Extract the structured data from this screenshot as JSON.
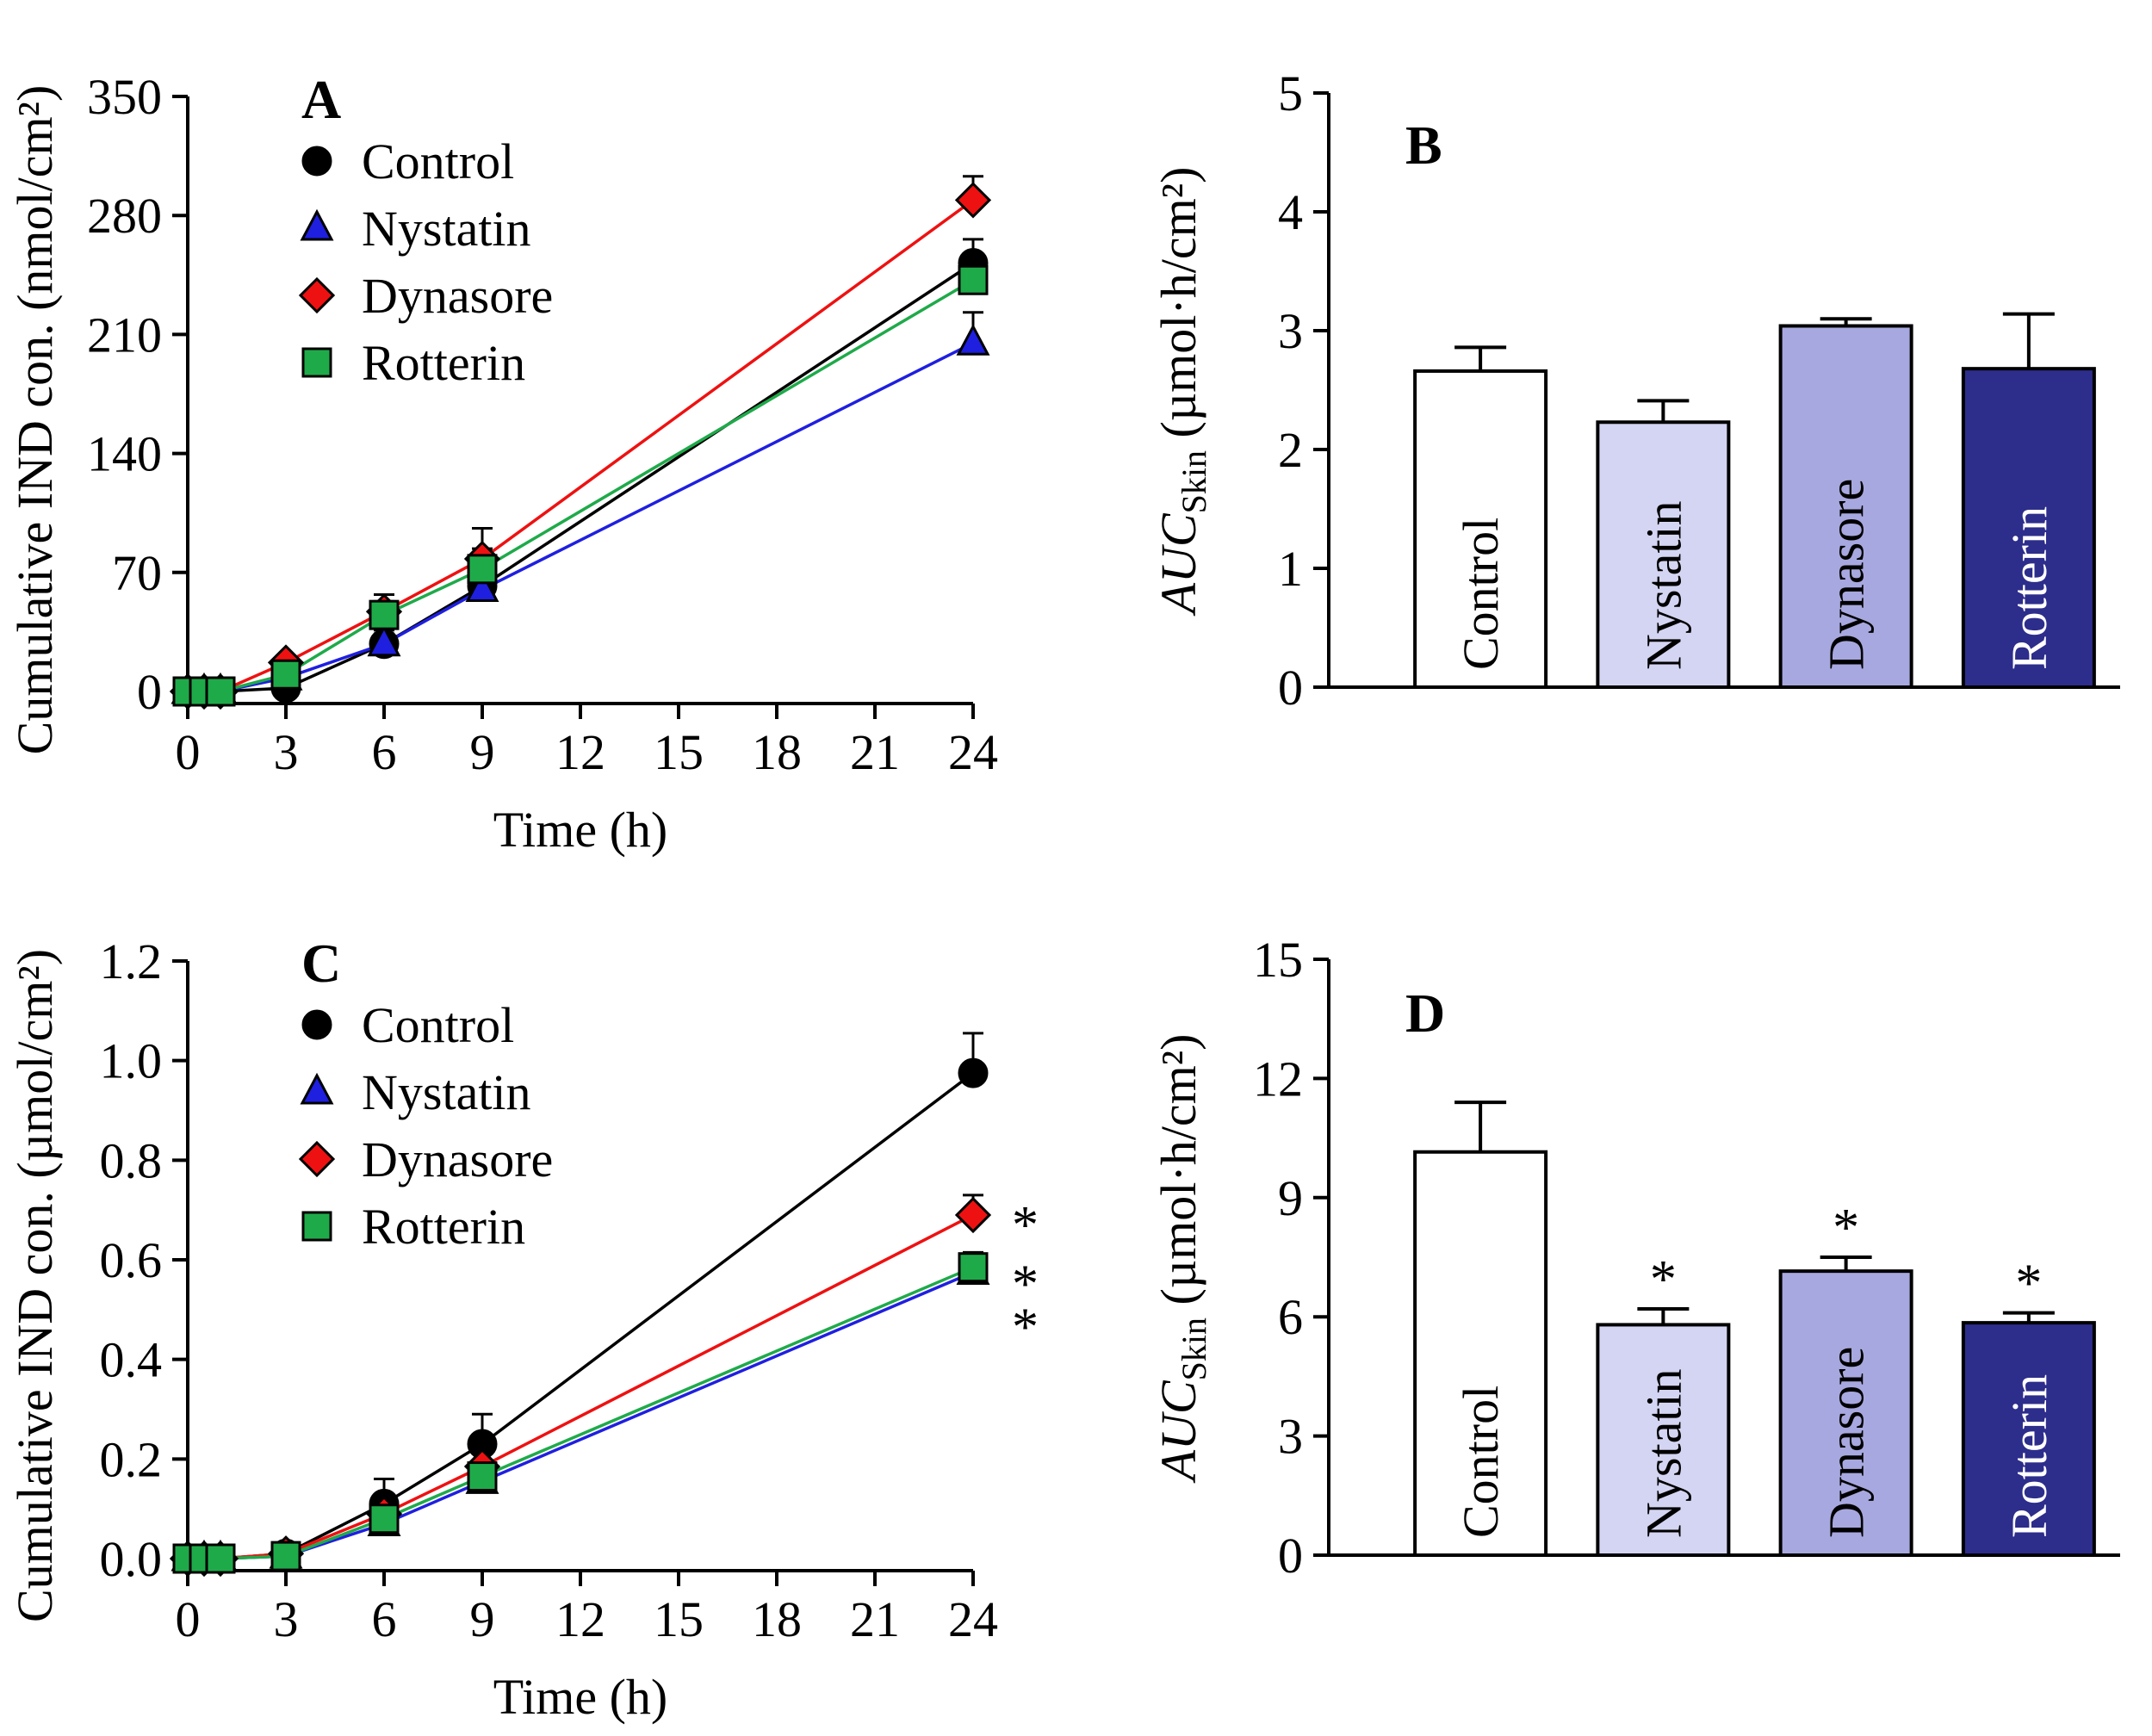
{
  "chart_data": [
    {
      "panel": "A",
      "type": "line",
      "title": "A",
      "xlabel": "Time (h)",
      "ylabel": "Cumulative IND con. (nmol/cm²)",
      "xlim": [
        0,
        24
      ],
      "ylim": [
        0,
        350
      ],
      "xticks": [
        "0",
        "3",
        "6",
        "9",
        "12",
        "15",
        "18",
        "21",
        "24"
      ],
      "yticks": [
        "0",
        "70",
        "140",
        "210",
        "280",
        "350"
      ],
      "x": [
        0,
        0.5,
        1,
        3,
        6,
        9,
        24
      ],
      "legend_position": "top-left",
      "series": [
        {
          "name": "Control",
          "marker": "circle",
          "color": "#000000",
          "values": [
            0,
            0,
            0,
            2,
            28,
            62,
            252
          ],
          "err": [
            0,
            0,
            0,
            4,
            8,
            10,
            14
          ]
        },
        {
          "name": "Nystatin",
          "marker": "triangle",
          "color": "#1f1fe0",
          "values": [
            0,
            0,
            0,
            8,
            28,
            60,
            205
          ],
          "err": [
            0,
            0,
            0,
            3,
            6,
            8,
            18
          ]
        },
        {
          "name": "Dynasore",
          "marker": "diamond",
          "color": "#ee1111",
          "values": [
            0,
            0,
            0,
            17,
            47,
            78,
            289
          ],
          "err": [
            0,
            0,
            0,
            4,
            10,
            18,
            14
          ]
        },
        {
          "name": "Rotterin",
          "marker": "square",
          "color": "#1faa4a",
          "values": [
            0,
            0,
            0,
            10,
            45,
            72,
            242
          ],
          "err": [
            0,
            0,
            0,
            4,
            8,
            12,
            10
          ]
        }
      ]
    },
    {
      "panel": "B",
      "type": "bar",
      "title": "B",
      "ylabel_main": "AUC",
      "ylabel_sub": "Skin",
      "ylabel_unit": " (µmol·h/cm²)",
      "ylim": [
        0,
        5
      ],
      "yticks": [
        "0",
        "1",
        "2",
        "3",
        "4",
        "5"
      ],
      "categories": [
        "Control",
        "Nystatin",
        "Dynasore",
        "Rotterin"
      ],
      "values": [
        2.66,
        2.23,
        3.04,
        2.68
      ],
      "err": [
        0.2,
        0.18,
        0.06,
        0.46
      ],
      "colors": [
        "#ffffff",
        "#d3d5f2",
        "#a7a8df",
        "#2d2d8c"
      ],
      "label_colors": [
        "#000000",
        "#000000",
        "#000000",
        "#ffffff"
      ],
      "stars": [
        "",
        "",
        "",
        ""
      ]
    },
    {
      "panel": "C",
      "type": "line",
      "title": "C",
      "xlabel": "Time (h)",
      "ylabel": "Cumulative IND con. (µmol/cm²)",
      "xlim": [
        0,
        24
      ],
      "ylim": [
        0,
        1.2
      ],
      "xticks": [
        "0",
        "3",
        "6",
        "9",
        "12",
        "15",
        "18",
        "21",
        "24"
      ],
      "yticks": [
        "0.0",
        "0.2",
        "0.4",
        "0.6",
        "0.8",
        "1.0",
        "1.2"
      ],
      "x": [
        0,
        0.5,
        1,
        3,
        6,
        9,
        24
      ],
      "legend_position": "top-left",
      "series": [
        {
          "name": "Control",
          "marker": "circle",
          "color": "#000000",
          "values": [
            0,
            0,
            0,
            0.01,
            0.11,
            0.23,
            0.975
          ],
          "err": [
            0,
            0,
            0,
            0.01,
            0.05,
            0.06,
            0.08
          ]
        },
        {
          "name": "Nystatin",
          "marker": "triangle",
          "color": "#1f1fe0",
          "values": [
            0,
            0,
            0,
            0.005,
            0.07,
            0.155,
            0.575
          ],
          "err": [
            0,
            0,
            0,
            0.005,
            0.02,
            0.02,
            0.03
          ]
        },
        {
          "name": "Dynasore",
          "marker": "diamond",
          "color": "#ee1111",
          "values": [
            0,
            0,
            0,
            0.01,
            0.09,
            0.185,
            0.69
          ],
          "err": [
            0,
            0,
            0,
            0.005,
            0.03,
            0.03,
            0.04
          ]
        },
        {
          "name": "Rotterin",
          "marker": "square",
          "color": "#1faa4a",
          "values": [
            0,
            0,
            0,
            0.005,
            0.08,
            0.165,
            0.585
          ],
          "err": [
            0,
            0,
            0,
            0.005,
            0.02,
            0.02,
            0.03
          ]
        }
      ],
      "annotations": [
        "*",
        "*",
        "*"
      ]
    },
    {
      "panel": "D",
      "type": "bar",
      "title": "D",
      "ylabel_main": "AUC",
      "ylabel_sub": "Skin",
      "ylabel_unit": " (µmol·h/cm²)",
      "ylim": [
        0,
        15
      ],
      "yticks": [
        "0",
        "3",
        "6",
        "9",
        "12",
        "15"
      ],
      "categories": [
        "Control",
        "Nystatin",
        "Dynasore",
        "Rotterin"
      ],
      "values": [
        10.15,
        5.8,
        7.15,
        5.85
      ],
      "err": [
        1.25,
        0.4,
        0.35,
        0.25
      ],
      "colors": [
        "#ffffff",
        "#d3d5f2",
        "#a7a8df",
        "#2d2d8c"
      ],
      "label_colors": [
        "#000000",
        "#000000",
        "#000000",
        "#ffffff"
      ],
      "stars": [
        "",
        "*",
        "*",
        "*"
      ]
    }
  ]
}
